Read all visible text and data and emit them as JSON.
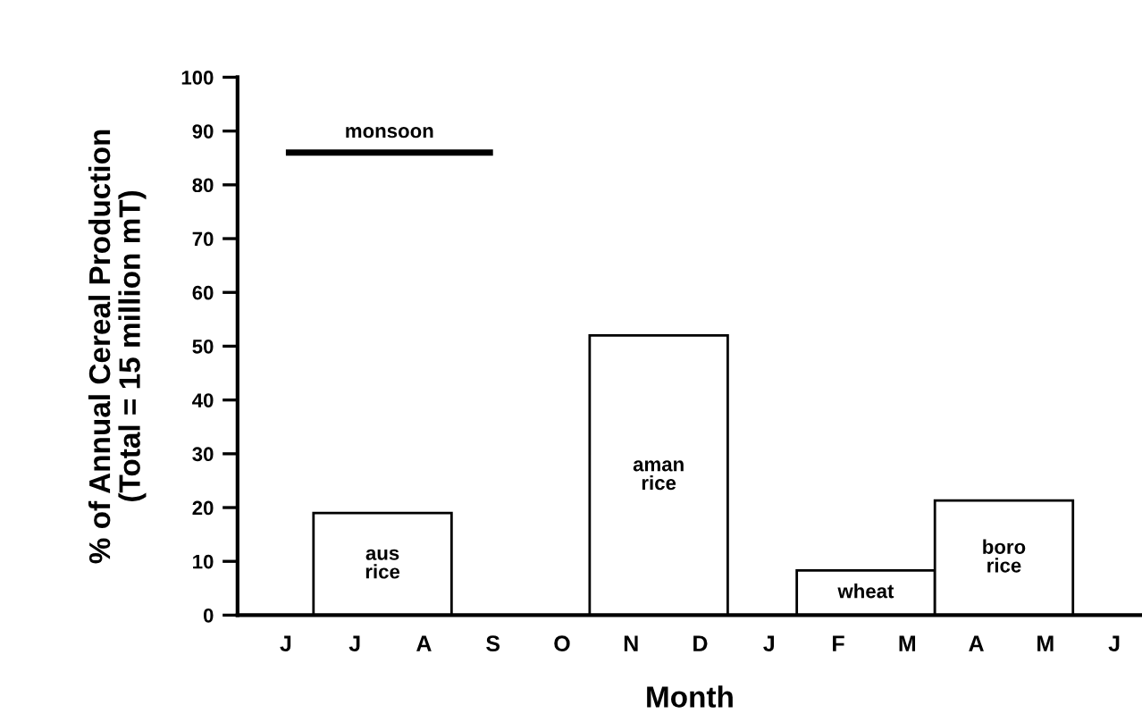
{
  "chart_data": {
    "type": "bar",
    "xlabel": "Month",
    "ylabel": "% of Annual Cereal Production\n(Total = 15 million mT)",
    "categories": [
      "J",
      "J",
      "A",
      "S",
      "O",
      "N",
      "D",
      "J",
      "F",
      "M",
      "A",
      "M",
      "J"
    ],
    "values": [
      null,
      19,
      null,
      null,
      null,
      52,
      null,
      null,
      8.3,
      null,
      21.3,
      null,
      null
    ],
    "color": "#ffffff",
    "series": [
      {
        "type": "line",
        "name": "monsoon",
        "color": "#000000",
        "values": [
          86,
          86,
          86,
          86,
          null,
          null,
          null,
          null,
          null,
          null,
          null,
          null,
          null
        ]
      }
    ],
    "annotations": [
      "aus\nrice",
      "aman\nrice",
      "wheat",
      "boro\nrice"
    ],
    "ylim": [
      0,
      100
    ],
    "yticks": [
      0,
      10,
      20,
      30,
      40,
      50,
      60,
      70,
      80,
      90,
      100
    ],
    "grid": false,
    "legend": false
  }
}
